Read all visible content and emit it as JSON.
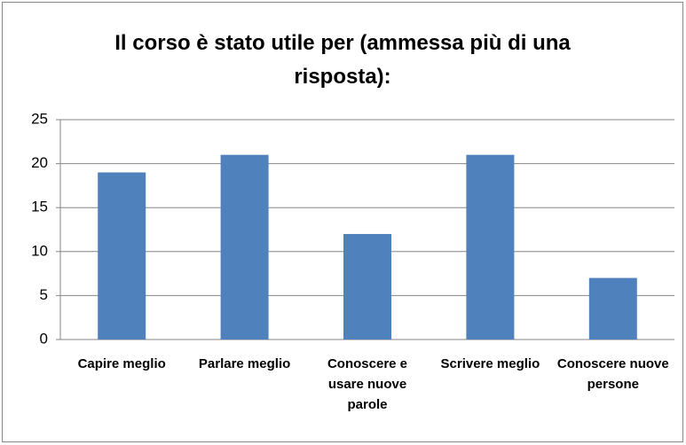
{
  "chart_data": {
    "type": "bar",
    "title": "Il corso è stato utile per (ammessa più di una risposta):",
    "categories": [
      "Capire meglio",
      "Parlare meglio",
      "Conoscere e usare nuove parole",
      "Scrivere meglio",
      "Conoscere nuove persone"
    ],
    "values": [
      19,
      21,
      12,
      21,
      7
    ],
    "color": "#4f81bd",
    "ylim": [
      0,
      25
    ],
    "yticks": [
      0,
      5,
      10,
      15,
      20,
      25
    ],
    "grid": true
  }
}
